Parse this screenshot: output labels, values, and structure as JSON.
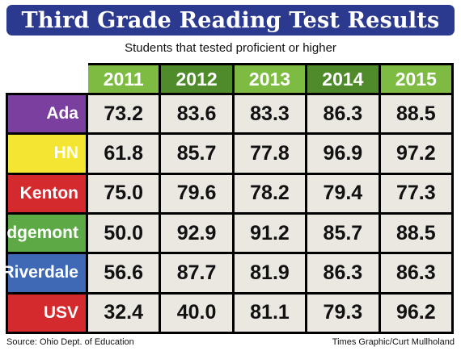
{
  "title": "Third Grade Reading Test Results",
  "subtitle": "Students that tested proficient or higher",
  "source": "Source: Ohio Dept. of Education",
  "credit": "Times Graphic/Curt Mullholand",
  "colors": {
    "title_bg": "#2b3a8e",
    "header_light_green": "#7dbb42",
    "header_dark_green": "#4f8a2b",
    "cell_bg": "#ebe8e2"
  },
  "chart_data": {
    "type": "table",
    "title": "Third Grade Reading Test Results",
    "subtitle": "Students that tested proficient or higher",
    "columns": [
      "2011",
      "2012",
      "2013",
      "2014",
      "2015"
    ],
    "rows": [
      {
        "name": "Ada",
        "color": "#7b3fa0",
        "values": [
          "73.2",
          "83.6",
          "83.3",
          "86.3",
          "88.5"
        ]
      },
      {
        "name": "HN",
        "color": "#f3e531",
        "values": [
          "61.8",
          "85.7",
          "77.8",
          "96.9",
          "97.2"
        ]
      },
      {
        "name": "Kenton",
        "color": "#d42a2e",
        "values": [
          "75.0",
          "79.6",
          "78.2",
          "79.4",
          "77.3"
        ]
      },
      {
        "name": "Ridgemont",
        "color": "#5da945",
        "values": [
          "50.0",
          "92.9",
          "91.2",
          "85.7",
          "88.5"
        ]
      },
      {
        "name": "Riverdale",
        "color": "#3f69b5",
        "values": [
          "56.6",
          "87.7",
          "81.9",
          "86.3",
          "86.3"
        ]
      },
      {
        "name": "USV",
        "color": "#d42a2e",
        "values": [
          "32.4",
          "40.0",
          "81.1",
          "79.3",
          "96.2"
        ]
      }
    ]
  }
}
